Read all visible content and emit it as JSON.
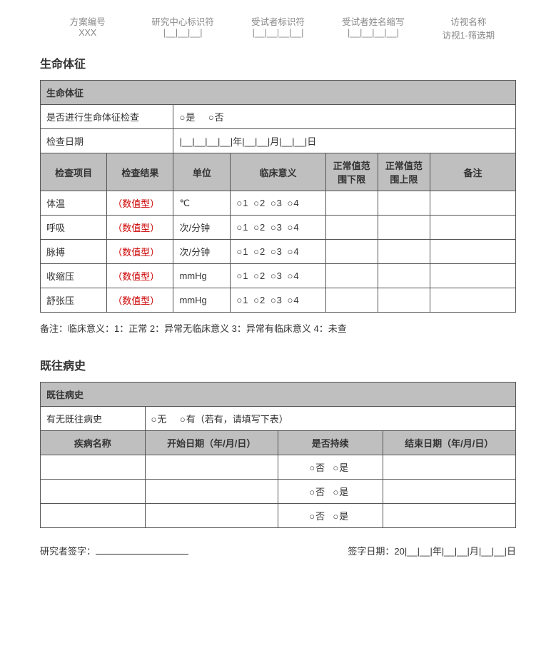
{
  "header": {
    "c1": {
      "label": "方案编号",
      "value": "XXX"
    },
    "c2": {
      "label": "研究中心标识符",
      "value": "|__|__|__|"
    },
    "c3": {
      "label": "受试者标识符",
      "value": "|__|__|__|__|"
    },
    "c4": {
      "label": "受试者姓名缩写",
      "value": "|__|__|__|__|"
    },
    "c5": {
      "label": "访视名称",
      "value": "访视1-筛选期"
    }
  },
  "vitals": {
    "section_title": "生命体征",
    "table_title": "生命体征",
    "performed_label": "是否进行生命体征检查",
    "opt_yes": "是",
    "opt_no": "否",
    "date_label": "检查日期",
    "date_value": "|__|__|__|__|年|__|__|月|__|__|日",
    "headers": {
      "item": "检查项目",
      "result": "检查结果",
      "unit": "单位",
      "clinical": "临床意义",
      "low": "正常值范围下限",
      "high": "正常值范围上限",
      "remark": "备注"
    },
    "result_placeholder": "（数值型）",
    "clinical_opts": "1",
    "clinical_opts2": "2",
    "clinical_opts3": "3",
    "clinical_opts4": "4",
    "rows": [
      {
        "item": "体温",
        "unit": "℃"
      },
      {
        "item": "呼吸",
        "unit": "次/分钟"
      },
      {
        "item": "脉搏",
        "unit": "次/分钟"
      },
      {
        "item": "收缩压",
        "unit": "mmHg"
      },
      {
        "item": "舒张压",
        "unit": "mmHg"
      }
    ],
    "note": "备注：临床意义：1：正常 2：异常无临床意义 3：异常有临床意义 4：未查"
  },
  "history": {
    "section_title": "既往病史",
    "table_title": "既往病史",
    "has_label": "有无既往病史",
    "opt_none": "无",
    "opt_has": "有（若有，请填写下表）",
    "headers": {
      "name": "疾病名称",
      "start": "开始日期（年/月/日）",
      "ongoing": "是否持续",
      "end": "结束日期（年/月/日）"
    },
    "opt_no": "否",
    "opt_yes": "是"
  },
  "footer": {
    "sig_label": "研究者签字：",
    "date_label": "签字日期：20|__|__|年|__|__|月|__|__|日"
  }
}
